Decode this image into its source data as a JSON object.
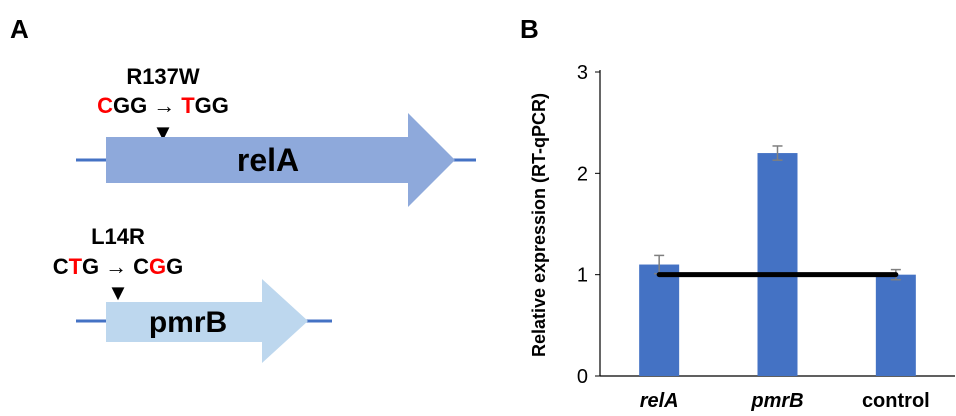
{
  "panel_a": {
    "label": "A",
    "genes": [
      {
        "name": "relA",
        "mutation": "R137W",
        "codon_from": [
          {
            "t": "C",
            "mut": true
          },
          {
            "t": "GG",
            "mut": false
          }
        ],
        "arrow": "→",
        "codon_to": [
          {
            "t": "T",
            "mut": true
          },
          {
            "t": "GG",
            "mut": false
          }
        ],
        "marker": "▼",
        "color": "#8EA9DB"
      },
      {
        "name": "pmrB",
        "mutation": "L14R",
        "codon_from": [
          {
            "t": "C",
            "mut": false
          },
          {
            "t": "T",
            "mut": true
          },
          {
            "t": "G",
            "mut": false
          }
        ],
        "arrow": "→",
        "codon_to": [
          {
            "t": "C",
            "mut": false
          },
          {
            "t": "G",
            "mut": true
          },
          {
            "t": "G",
            "mut": false
          }
        ],
        "marker": "▼",
        "color": "#BDD7EE"
      }
    ],
    "line_color": "#4472C4",
    "mutation_color": "#FF0000"
  },
  "panel_b": {
    "label": "B"
  },
  "chart_data": {
    "type": "bar",
    "categories": [
      "relA",
      "pmrB",
      "control"
    ],
    "values": [
      1.1,
      2.2,
      1.0
    ],
    "errors": [
      0.09,
      0.07,
      0.05
    ],
    "ylabel": "Relative expression (RT-qPCR)",
    "xlabel": "",
    "ylim": [
      0,
      3
    ],
    "yticks": [
      "0",
      "1",
      "2",
      "3"
    ],
    "reference_line": 1,
    "bar_color": "#4472C4",
    "error_color": "#7F7F7F",
    "reference_color": "#000000",
    "grid": false,
    "legend": "none"
  }
}
